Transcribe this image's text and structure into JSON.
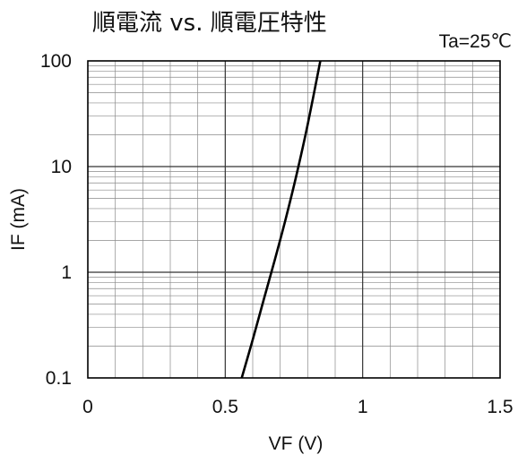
{
  "chart_data": {
    "type": "line",
    "title": "順電流 vs. 順電圧特性",
    "annotation": "Ta=25℃",
    "xlabel": "VF (V)",
    "ylabel": "IF (mA)",
    "xlim": [
      0,
      1.5
    ],
    "ylim": [
      0.1,
      100
    ],
    "yscale": "log",
    "xticks": [
      0,
      0.5,
      1,
      1.5
    ],
    "xtick_labels": [
      "0",
      "0.5",
      "1",
      "1.5"
    ],
    "yticks": [
      0.1,
      1,
      10,
      100
    ],
    "ytick_labels": [
      "0.1",
      "1",
      "10",
      "100"
    ],
    "grid": true,
    "series": [
      {
        "x": [
          0.56,
          0.6,
          0.64,
          0.68,
          0.72,
          0.76,
          0.8,
          0.846
        ],
        "y": [
          0.1,
          0.23,
          0.55,
          1.3,
          3.2,
          8.5,
          25,
          100
        ]
      }
    ],
    "colors": {
      "line": "#000000",
      "grid_major": "#333333",
      "grid_minor": "#8a8a8a"
    }
  }
}
